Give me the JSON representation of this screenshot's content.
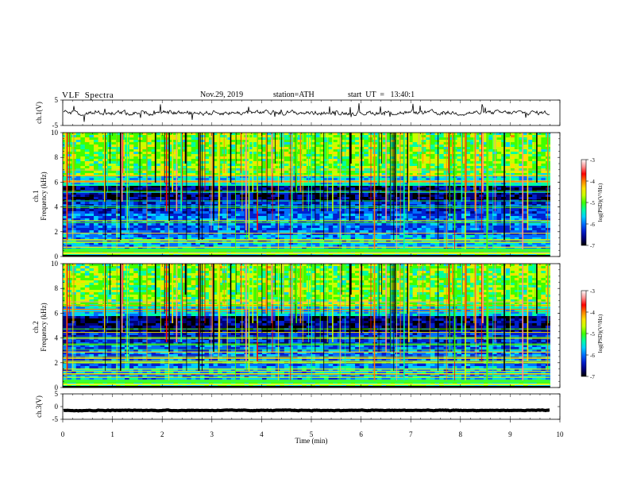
{
  "header": {
    "title": "VLF  Spectra",
    "date": "Nov.29, 2019",
    "station": "station=ATH",
    "start": "start  UT  =   13:40:1"
  },
  "chart_data": [
    {
      "type": "line",
      "name": "ch1-waveform",
      "ylabel": "ch.1(V)",
      "ylim": [
        -5,
        5
      ],
      "yticks": [
        "5",
        "-5"
      ],
      "xlim": [
        0,
        10
      ],
      "baseline": 0,
      "color": "#000000"
    },
    {
      "type": "heatmap",
      "name": "ch1-spectrogram",
      "ylabel": "ch.1\nFrequency (kHz)",
      "ylabel_top": "ch.1",
      "ylabel_bottom": "Frequency (kHz)",
      "ylim": [
        0,
        10
      ],
      "yticks": [
        "0",
        "2",
        "4",
        "6",
        "8",
        "10"
      ],
      "xlim": [
        0,
        10
      ],
      "data_end_min": 9.8,
      "colorbar": {
        "label": "log(PSD)(V²/Hz)",
        "min": -7,
        "max": -3,
        "ticks": [
          "-3",
          "-4",
          "-5",
          "-6",
          "-7"
        ]
      }
    },
    {
      "type": "heatmap",
      "name": "ch2-spectrogram",
      "ylabel": "ch.2\nFrequency (kHz)",
      "ylabel_top": "ch.2",
      "ylabel_bottom": "Frequency (kHz)",
      "ylim": [
        0,
        10
      ],
      "yticks": [
        "0",
        "2",
        "4",
        "6",
        "8",
        "10"
      ],
      "xlim": [
        0,
        10
      ],
      "data_end_min": 9.8,
      "colorbar": {
        "label": "log(PSD)(V²/Hz)",
        "min": -7,
        "max": -3,
        "ticks": [
          "-3",
          "-4",
          "-5",
          "-6",
          "-7"
        ]
      }
    },
    {
      "type": "line",
      "name": "ch3-waveform",
      "ylabel": "ch.3(V)",
      "ylim": [
        -5,
        5
      ],
      "yticks": [
        "5",
        "0",
        "-5"
      ],
      "xlim": [
        0,
        10
      ],
      "baseline": -1.5,
      "color": "#000000"
    }
  ],
  "xaxis": {
    "label": "Time  (min)",
    "ticks": [
      "0",
      "1",
      "2",
      "3",
      "4",
      "5",
      "6",
      "7",
      "8",
      "9",
      "10"
    ],
    "range": [
      0,
      10
    ]
  },
  "colormap": [
    "#000000",
    "#00007a",
    "#0020d0",
    "#0070ff",
    "#00d0ff",
    "#00ffa0",
    "#40ff00",
    "#c8ff00",
    "#ffe000",
    "#ff8000",
    "#ff0000",
    "#ff9090",
    "#ffffff"
  ]
}
